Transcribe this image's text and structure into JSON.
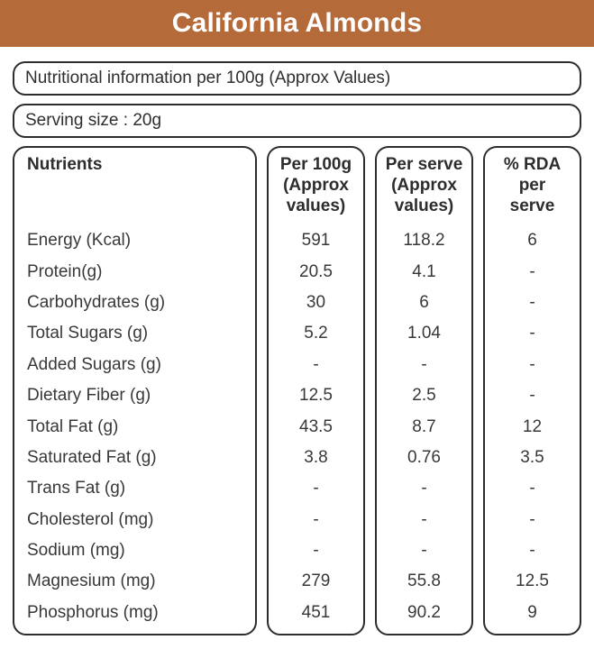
{
  "colors": {
    "header_bg": "#b56a3a",
    "header_text": "#ffffff",
    "border": "#2d2d2d",
    "text": "#383838"
  },
  "header": {
    "title": "California Almonds"
  },
  "info_bars": {
    "nutritional_info": "Nutritional information per 100g (Approx Values)",
    "serving_size": "Serving size : 20g"
  },
  "table": {
    "columns": {
      "nutrients": "Nutrients",
      "per100g": "Per 100g\n(Approx\nvalues)",
      "perServe": "Per serve\n(Approx\nvalues)",
      "rda": "% RDA\nper\nserve"
    },
    "rows": [
      {
        "nutrient": "Energy (Kcal)",
        "per100g": "591",
        "perServe": "118.2",
        "rda": "6"
      },
      {
        "nutrient": "Protein(g)",
        "per100g": "20.5",
        "perServe": "4.1",
        "rda": "-"
      },
      {
        "nutrient": "Carbohydrates (g)",
        "per100g": "30",
        "perServe": "6",
        "rda": "-"
      },
      {
        "nutrient": "Total Sugars (g)",
        "per100g": "5.2",
        "perServe": "1.04",
        "rda": "-"
      },
      {
        "nutrient": "Added Sugars (g)",
        "per100g": "-",
        "perServe": "-",
        "rda": "-"
      },
      {
        "nutrient": "Dietary Fiber (g)",
        "per100g": "12.5",
        "perServe": "2.5",
        "rda": "-"
      },
      {
        "nutrient": "Total Fat (g)",
        "per100g": "43.5",
        "perServe": "8.7",
        "rda": "12"
      },
      {
        "nutrient": "Saturated Fat (g)",
        "per100g": "3.8",
        "perServe": "0.76",
        "rda": "3.5"
      },
      {
        "nutrient": "Trans Fat (g)",
        "per100g": "-",
        "perServe": "-",
        "rda": "-"
      },
      {
        "nutrient": "Cholesterol (mg)",
        "per100g": "-",
        "perServe": "-",
        "rda": "-"
      },
      {
        "nutrient": "Sodium (mg)",
        "per100g": "-",
        "perServe": "-",
        "rda": "-"
      },
      {
        "nutrient": "Magnesium (mg)",
        "per100g": "279",
        "perServe": "55.8",
        "rda": "12.5"
      },
      {
        "nutrient": "Phosphorus (mg)",
        "per100g": "451",
        "perServe": "90.2",
        "rda": "9"
      }
    ]
  }
}
